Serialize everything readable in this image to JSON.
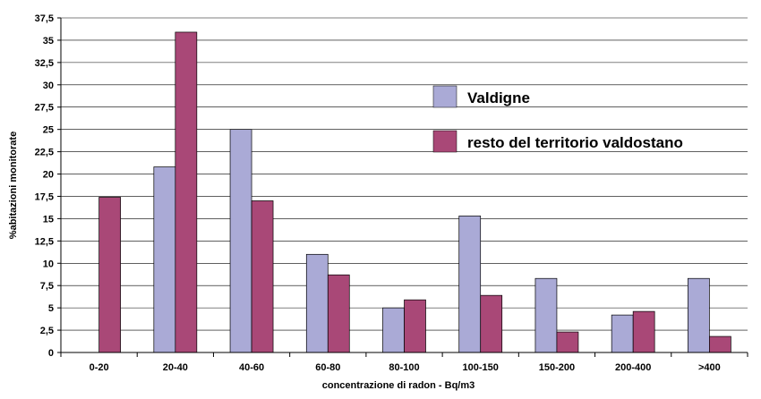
{
  "chart_data": {
    "type": "bar",
    "title": "",
    "xlabel": "concentrazione di radon - Bq/m3",
    "ylabel": "%abitazioni monitorate",
    "categories": [
      "0-20",
      "20-40",
      "40-60",
      "60-80",
      "80-100",
      "100-150",
      "150-200",
      "200-400",
      ">400"
    ],
    "series": [
      {
        "name": "Valdigne",
        "color": "#aaaad6",
        "values": [
          0,
          20.8,
          25,
          11,
          5,
          15.3,
          8.3,
          4.2,
          8.3
        ]
      },
      {
        "name": "resto del territorio valdostano",
        "color": "#a94877",
        "values": [
          17.4,
          35.9,
          17,
          8.7,
          5.9,
          6.4,
          2.3,
          4.6,
          1.8
        ]
      }
    ],
    "ylim": [
      0,
      37.5
    ],
    "yticks": [
      "0",
      "2,5",
      "5",
      "7,5",
      "10",
      "12,5",
      "15",
      "17,5",
      "20",
      "22,5",
      "25",
      "27,5",
      "30",
      "32,5",
      "35",
      "37,5"
    ],
    "grid": true,
    "legend_position": "right"
  }
}
